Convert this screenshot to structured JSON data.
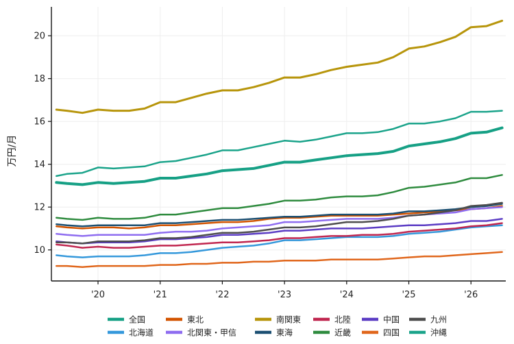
{
  "chart_data": {
    "type": "line",
    "title": "",
    "xlabel": "",
    "ylabel": "万円/月",
    "xlim": [
      2019.25,
      2026.56
    ],
    "ylim": [
      8.55,
      21.35
    ],
    "yticks": [
      10,
      12,
      14,
      16,
      18,
      20
    ],
    "xticks": [
      {
        "value": 2020,
        "label": "'20"
      },
      {
        "value": 2021,
        "label": "'21"
      },
      {
        "value": 2022,
        "label": "'22"
      },
      {
        "value": 2023,
        "label": "'23"
      },
      {
        "value": 2024,
        "label": "'24"
      },
      {
        "value": 2025,
        "label": "'25"
      },
      {
        "value": 2026,
        "label": "'26"
      }
    ],
    "grid": true,
    "legend_position": "bottom",
    "x": [
      2019.33,
      2019.5,
      2019.75,
      2020.0,
      2020.25,
      2020.5,
      2020.75,
      2021.0,
      2021.25,
      2021.5,
      2021.75,
      2022.0,
      2022.25,
      2022.5,
      2022.75,
      2023.0,
      2023.25,
      2023.5,
      2023.75,
      2024.0,
      2024.25,
      2024.5,
      2024.75,
      2025.0,
      2025.25,
      2025.5,
      2025.75,
      2026.0,
      2026.25,
      2026.5
    ],
    "series": [
      {
        "name": "全国",
        "color": "#16a085",
        "width": 4,
        "values": [
          13.15,
          13.1,
          13.05,
          13.15,
          13.1,
          13.15,
          13.2,
          13.35,
          13.35,
          13.45,
          13.55,
          13.7,
          13.75,
          13.8,
          13.95,
          14.1,
          14.1,
          14.2,
          14.3,
          14.4,
          14.45,
          14.5,
          14.6,
          14.85,
          14.95,
          15.05,
          15.2,
          15.45,
          15.5,
          15.7
        ]
      },
      {
        "name": "北海道",
        "color": "#3498db",
        "width": 2.5,
        "values": [
          9.75,
          9.7,
          9.65,
          9.7,
          9.7,
          9.7,
          9.75,
          9.85,
          9.85,
          9.9,
          10.0,
          10.1,
          10.15,
          10.2,
          10.3,
          10.45,
          10.45,
          10.5,
          10.55,
          10.6,
          10.6,
          10.6,
          10.65,
          10.75,
          10.8,
          10.85,
          10.95,
          11.05,
          11.1,
          11.15
        ]
      },
      {
        "name": "東北",
        "color": "#d35400",
        "width": 2.5,
        "values": [
          11.1,
          11.05,
          11.0,
          11.05,
          11.05,
          11.0,
          11.05,
          11.15,
          11.15,
          11.2,
          11.25,
          11.3,
          11.3,
          11.35,
          11.45,
          11.5,
          11.5,
          11.55,
          11.6,
          11.6,
          11.6,
          11.6,
          11.65,
          11.7,
          11.75,
          11.8,
          11.85,
          11.9,
          11.95,
          12.05
        ]
      },
      {
        "name": "北関東・甲信",
        "color": "#8e6cf0",
        "width": 2.5,
        "values": [
          10.75,
          10.7,
          10.65,
          10.7,
          10.7,
          10.7,
          10.7,
          10.8,
          10.85,
          10.85,
          10.9,
          11.0,
          11.05,
          11.1,
          11.15,
          11.3,
          11.3,
          11.35,
          11.4,
          11.45,
          11.45,
          11.45,
          11.5,
          11.6,
          11.65,
          11.7,
          11.75,
          11.9,
          11.95,
          12.0
        ]
      },
      {
        "name": "南関東",
        "color": "#b7950b",
        "width": 3,
        "values": [
          16.55,
          16.5,
          16.4,
          16.55,
          16.5,
          16.5,
          16.6,
          16.9,
          16.9,
          17.1,
          17.3,
          17.45,
          17.45,
          17.6,
          17.8,
          18.05,
          18.05,
          18.2,
          18.4,
          18.55,
          18.65,
          18.75,
          19.0,
          19.4,
          19.5,
          19.7,
          19.95,
          20.4,
          20.45,
          20.7
        ]
      },
      {
        "name": "東海",
        "color": "#1b4f72",
        "width": 2.5,
        "values": [
          11.2,
          11.15,
          11.1,
          11.15,
          11.15,
          11.15,
          11.15,
          11.25,
          11.25,
          11.3,
          11.35,
          11.4,
          11.4,
          11.45,
          11.5,
          11.55,
          11.55,
          11.6,
          11.65,
          11.65,
          11.65,
          11.65,
          11.7,
          11.8,
          11.8,
          11.85,
          11.9,
          12.0,
          12.05,
          12.15
        ]
      },
      {
        "name": "北陸",
        "color": "#c0264f",
        "width": 2.5,
        "values": [
          10.25,
          10.2,
          10.1,
          10.15,
          10.1,
          10.1,
          10.15,
          10.2,
          10.2,
          10.25,
          10.3,
          10.35,
          10.35,
          10.4,
          10.45,
          10.55,
          10.55,
          10.6,
          10.65,
          10.65,
          10.7,
          10.7,
          10.75,
          10.85,
          10.9,
          10.95,
          11.0,
          11.1,
          11.15,
          11.25
        ]
      },
      {
        "name": "近畿",
        "color": "#2e8b3e",
        "width": 2.5,
        "values": [
          11.5,
          11.45,
          11.4,
          11.5,
          11.45,
          11.45,
          11.5,
          11.65,
          11.65,
          11.75,
          11.85,
          11.95,
          11.95,
          12.05,
          12.15,
          12.3,
          12.3,
          12.35,
          12.45,
          12.5,
          12.5,
          12.55,
          12.7,
          12.9,
          12.95,
          13.05,
          13.15,
          13.35,
          13.35,
          13.5
        ]
      },
      {
        "name": "中国",
        "color": "#5b3cc4",
        "width": 2.5,
        "values": [
          10.4,
          10.35,
          10.3,
          10.35,
          10.35,
          10.35,
          10.4,
          10.5,
          10.5,
          10.55,
          10.6,
          10.7,
          10.7,
          10.75,
          10.8,
          10.9,
          10.9,
          10.95,
          11.0,
          11.0,
          11.0,
          11.05,
          11.1,
          11.15,
          11.15,
          11.2,
          11.25,
          11.35,
          11.35,
          11.45
        ]
      },
      {
        "name": "四国",
        "color": "#e0661b",
        "width": 2.5,
        "values": [
          9.25,
          9.25,
          9.2,
          9.25,
          9.25,
          9.25,
          9.25,
          9.3,
          9.3,
          9.35,
          9.35,
          9.4,
          9.4,
          9.45,
          9.45,
          9.5,
          9.5,
          9.5,
          9.55,
          9.55,
          9.55,
          9.55,
          9.6,
          9.65,
          9.7,
          9.7,
          9.75,
          9.8,
          9.85,
          9.9
        ]
      },
      {
        "name": "九州",
        "color": "#4d4d4d",
        "width": 2.5,
        "values": [
          10.35,
          10.35,
          10.3,
          10.4,
          10.4,
          10.4,
          10.45,
          10.55,
          10.55,
          10.6,
          10.7,
          10.8,
          10.8,
          10.85,
          10.95,
          11.05,
          11.05,
          11.1,
          11.2,
          11.3,
          11.3,
          11.35,
          11.45,
          11.6,
          11.65,
          11.75,
          11.85,
          12.05,
          12.1,
          12.2
        ]
      },
      {
        "name": "沖縄",
        "color": "#1aa38a",
        "width": 2.5,
        "values": [
          13.45,
          13.55,
          13.6,
          13.85,
          13.8,
          13.85,
          13.9,
          14.1,
          14.15,
          14.3,
          14.45,
          14.65,
          14.65,
          14.8,
          14.95,
          15.1,
          15.05,
          15.15,
          15.3,
          15.45,
          15.45,
          15.5,
          15.65,
          15.9,
          15.9,
          16.0,
          16.15,
          16.45,
          16.45,
          16.5
        ]
      }
    ]
  }
}
